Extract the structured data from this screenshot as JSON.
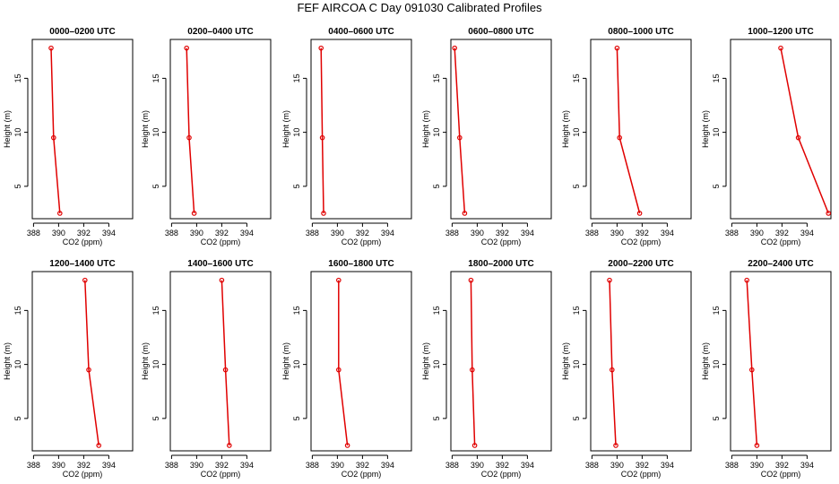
{
  "figure": {
    "title": "FEF AIRCOA C  Day 091030  Calibrated Profiles"
  },
  "colors": {
    "series": "#e00000",
    "axis": "#000000"
  },
  "chart_data": [
    {
      "type": "line",
      "title": "0000–0200 UTC",
      "xlabel": "CO2 (ppm)",
      "ylabel": "Height (m)",
      "xlim": [
        387.9,
        395.9
      ],
      "ylim": [
        2.0,
        18.6
      ],
      "xticks": [
        388,
        390,
        392,
        394
      ],
      "yticks": [
        5,
        10,
        15
      ],
      "x": [
        389.4,
        389.6,
        390.1
      ],
      "y": [
        17.8,
        9.5,
        2.5
      ]
    },
    {
      "type": "line",
      "title": "0200–0400 UTC",
      "xlabel": "CO2 (ppm)",
      "ylabel": "Height (m)",
      "xlim": [
        387.9,
        395.9
      ],
      "ylim": [
        2.0,
        18.6
      ],
      "xticks": [
        388,
        390,
        392,
        394
      ],
      "yticks": [
        5,
        10,
        15
      ],
      "x": [
        389.2,
        389.4,
        389.8
      ],
      "y": [
        17.8,
        9.5,
        2.5
      ]
    },
    {
      "type": "line",
      "title": "0400–0600 UTC",
      "xlabel": "CO2 (ppm)",
      "ylabel": "Height (m)",
      "xlim": [
        387.9,
        395.9
      ],
      "ylim": [
        2.0,
        18.6
      ],
      "xticks": [
        388,
        390,
        392,
        394
      ],
      "yticks": [
        5,
        10,
        15
      ],
      "x": [
        388.7,
        388.8,
        388.9
      ],
      "y": [
        17.8,
        9.5,
        2.5
      ]
    },
    {
      "type": "line",
      "title": "0600–0800 UTC",
      "xlabel": "CO2 (ppm)",
      "ylabel": "Height (m)",
      "xlim": [
        387.9,
        395.9
      ],
      "ylim": [
        2.0,
        18.6
      ],
      "xticks": [
        388,
        390,
        392,
        394
      ],
      "yticks": [
        5,
        10,
        15
      ],
      "x": [
        388.2,
        388.6,
        389.0
      ],
      "y": [
        17.8,
        9.5,
        2.5
      ]
    },
    {
      "type": "line",
      "title": "0800–1000 UTC",
      "xlabel": "CO2 (ppm)",
      "ylabel": "Height (m)",
      "xlim": [
        387.9,
        395.9
      ],
      "ylim": [
        2.0,
        18.6
      ],
      "xticks": [
        388,
        390,
        392,
        394
      ],
      "yticks": [
        5,
        10,
        15
      ],
      "x": [
        390.0,
        390.2,
        391.8
      ],
      "y": [
        17.8,
        9.5,
        2.5
      ]
    },
    {
      "type": "line",
      "title": "1000–1200 UTC",
      "xlabel": "CO2 (ppm)",
      "ylabel": "Height (m)",
      "xlim": [
        387.9,
        395.9
      ],
      "ylim": [
        2.0,
        18.6
      ],
      "xticks": [
        388,
        390,
        392,
        394
      ],
      "yticks": [
        5,
        10,
        15
      ],
      "x": [
        391.9,
        393.3,
        395.7
      ],
      "y": [
        17.8,
        9.5,
        2.5
      ]
    },
    {
      "type": "line",
      "title": "1200–1400 UTC",
      "xlabel": "CO2 (ppm)",
      "ylabel": "Height (m)",
      "xlim": [
        387.9,
        395.9
      ],
      "ylim": [
        2.0,
        18.6
      ],
      "xticks": [
        388,
        390,
        392,
        394
      ],
      "yticks": [
        5,
        10,
        15
      ],
      "x": [
        392.1,
        392.4,
        393.2
      ],
      "y": [
        17.8,
        9.5,
        2.5
      ]
    },
    {
      "type": "line",
      "title": "1400–1600 UTC",
      "xlabel": "CO2 (ppm)",
      "ylabel": "Height (m)",
      "xlim": [
        387.9,
        395.9
      ],
      "ylim": [
        2.0,
        18.6
      ],
      "xticks": [
        388,
        390,
        392,
        394
      ],
      "yticks": [
        5,
        10,
        15
      ],
      "x": [
        392.0,
        392.3,
        392.6
      ],
      "y": [
        17.8,
        9.5,
        2.5
      ]
    },
    {
      "type": "line",
      "title": "1600–1800 UTC",
      "xlabel": "CO2 (ppm)",
      "ylabel": "Height (m)",
      "xlim": [
        387.9,
        395.9
      ],
      "ylim": [
        2.0,
        18.6
      ],
      "xticks": [
        388,
        390,
        392,
        394
      ],
      "yticks": [
        5,
        10,
        15
      ],
      "x": [
        390.1,
        390.1,
        390.8
      ],
      "y": [
        17.8,
        9.5,
        2.5
      ]
    },
    {
      "type": "line",
      "title": "1800–2000 UTC",
      "xlabel": "CO2 (ppm)",
      "ylabel": "Height (m)",
      "xlim": [
        387.9,
        395.9
      ],
      "ylim": [
        2.0,
        18.6
      ],
      "xticks": [
        388,
        390,
        392,
        394
      ],
      "yticks": [
        5,
        10,
        15
      ],
      "x": [
        389.5,
        389.6,
        389.8
      ],
      "y": [
        17.8,
        9.5,
        2.5
      ]
    },
    {
      "type": "line",
      "title": "2000–2200 UTC",
      "xlabel": "CO2 (ppm)",
      "ylabel": "Height (m)",
      "xlim": [
        387.9,
        395.9
      ],
      "ylim": [
        2.0,
        18.6
      ],
      "xticks": [
        388,
        390,
        392,
        394
      ],
      "yticks": [
        5,
        10,
        15
      ],
      "x": [
        389.4,
        389.6,
        389.9
      ],
      "y": [
        17.8,
        9.5,
        2.5
      ]
    },
    {
      "type": "line",
      "title": "2200–2400 UTC",
      "xlabel": "CO2 (ppm)",
      "ylabel": "Height (m)",
      "xlim": [
        387.9,
        395.9
      ],
      "ylim": [
        2.0,
        18.6
      ],
      "xticks": [
        388,
        390,
        392,
        394
      ],
      "yticks": [
        5,
        10,
        15
      ],
      "x": [
        389.2,
        389.6,
        390.0
      ],
      "y": [
        17.8,
        9.5,
        2.5
      ]
    }
  ]
}
